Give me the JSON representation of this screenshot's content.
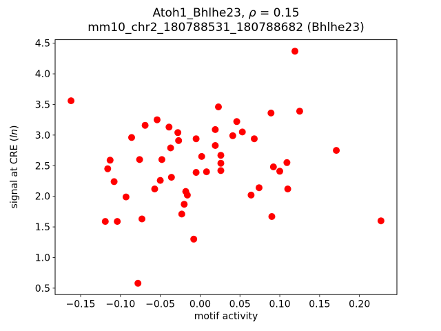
{
  "text": {
    "title_prefix": "Atoh1_Bhlhe23, ",
    "title_rho": "ρ",
    "title_suffix": " = 0.15",
    "subtitle": "mm10_chr2_180788531_180788682 (Bhlhe23)",
    "xlabel": "motif activity",
    "ylabel_prefix": "signal at CRE (",
    "ylabel_italic": "ln",
    "ylabel_suffix": ")"
  },
  "chart_data": {
    "type": "scatter",
    "title": "Atoh1_Bhlhe23, ρ = 0.15",
    "subtitle": "mm10_chr2_180788531_180788682 (Bhlhe23)",
    "xlabel": "motif activity",
    "ylabel": "signal at CRE (ln)",
    "correlation_rho": 0.15,
    "grid": false,
    "legend": "none",
    "marker_color": "#ff0000",
    "frame_color": "#000000",
    "background_color": "#ffffff",
    "xlim": [
      -0.182,
      0.247
    ],
    "ylim": [
      0.395,
      4.557
    ],
    "xticks": [
      -0.15,
      -0.1,
      -0.05,
      0.0,
      0.05,
      0.1,
      0.15,
      0.2
    ],
    "xtick_labels": [
      "−0.15",
      "−0.10",
      "−0.05",
      "0.00",
      "0.05",
      "0.10",
      "0.15",
      "0.20"
    ],
    "yticks": [
      0.5,
      1.0,
      1.5,
      2.0,
      2.5,
      3.0,
      3.5,
      4.0,
      4.5
    ],
    "ytick_labels": [
      "0.5",
      "1.0",
      "1.5",
      "2.0",
      "2.5",
      "3.0",
      "3.5",
      "4.0",
      "4.5"
    ],
    "points": [
      [
        -0.162,
        3.56
      ],
      [
        -0.119,
        1.59
      ],
      [
        -0.116,
        2.45
      ],
      [
        -0.113,
        2.59
      ],
      [
        -0.108,
        2.24
      ],
      [
        -0.104,
        1.59
      ],
      [
        -0.093,
        1.99
      ],
      [
        -0.086,
        2.96
      ],
      [
        -0.078,
        0.58
      ],
      [
        -0.076,
        2.6
      ],
      [
        -0.073,
        1.63
      ],
      [
        -0.069,
        3.16
      ],
      [
        -0.057,
        2.12
      ],
      [
        -0.054,
        3.25
      ],
      [
        -0.05,
        2.26
      ],
      [
        -0.048,
        2.6
      ],
      [
        -0.039,
        3.13
      ],
      [
        -0.037,
        2.79
      ],
      [
        -0.036,
        2.31
      ],
      [
        -0.028,
        3.04
      ],
      [
        -0.027,
        2.91
      ],
      [
        -0.023,
        1.71
      ],
      [
        -0.02,
        1.87
      ],
      [
        -0.018,
        2.08
      ],
      [
        -0.016,
        2.02
      ],
      [
        -0.008,
        1.3
      ],
      [
        -0.005,
        2.94
      ],
      [
        -0.005,
        2.39
      ],
      [
        0.002,
        2.65
      ],
      [
        0.008,
        2.4
      ],
      [
        0.019,
        3.09
      ],
      [
        0.019,
        2.83
      ],
      [
        0.023,
        3.46
      ],
      [
        0.026,
        2.67
      ],
      [
        0.026,
        2.54
      ],
      [
        0.026,
        2.42
      ],
      [
        0.041,
        2.99
      ],
      [
        0.046,
        3.22
      ],
      [
        0.053,
        3.05
      ],
      [
        0.064,
        2.02
      ],
      [
        0.068,
        2.94
      ],
      [
        0.074,
        2.14
      ],
      [
        0.089,
        3.36
      ],
      [
        0.09,
        1.67
      ],
      [
        0.092,
        2.48
      ],
      [
        0.1,
        2.41
      ],
      [
        0.109,
        2.55
      ],
      [
        0.11,
        2.12
      ],
      [
        0.119,
        4.37
      ],
      [
        0.125,
        3.39
      ],
      [
        0.171,
        2.75
      ],
      [
        0.227,
        1.6
      ]
    ]
  }
}
